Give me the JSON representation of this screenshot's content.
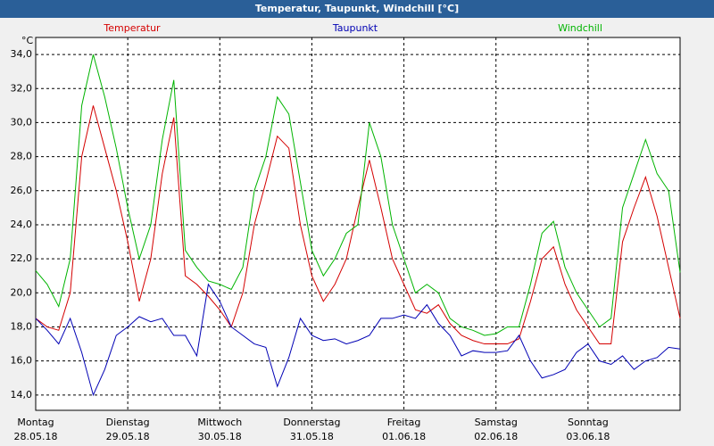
{
  "chart_data": {
    "type": "line",
    "title": "Temperatur, Taupunkt, Windchill [°C]",
    "ylabel": "°C",
    "x": [
      0,
      3,
      6,
      9,
      12,
      15,
      18,
      21,
      24,
      27,
      30,
      33,
      36,
      39,
      42,
      45,
      48,
      51,
      54,
      57,
      60,
      63,
      66,
      69,
      72,
      75,
      78,
      81,
      84,
      87,
      90,
      93,
      96,
      99,
      102,
      105,
      108,
      111,
      114,
      117,
      120,
      123,
      126,
      129,
      132,
      135,
      138,
      141,
      144,
      147,
      150,
      153,
      156,
      159,
      162,
      165,
      168
    ],
    "xlim": [
      0,
      168
    ],
    "xticks": [
      {
        "value": 0,
        "label": "Montag"
      },
      {
        "value": 24,
        "label": "Dienstag"
      },
      {
        "value": 48,
        "label": "Mittwoch"
      },
      {
        "value": 72,
        "label": "Donnerstag"
      },
      {
        "value": 96,
        "label": "Freitag"
      },
      {
        "value": 120,
        "label": "Samstag"
      },
      {
        "value": 144,
        "label": "Sonntag"
      }
    ],
    "xtick_dates": [
      "28.05.18",
      "29.05.18",
      "30.05.18",
      "31.05.18",
      "01.06.18",
      "02.06.18",
      "03.06.18"
    ],
    "ylim": [
      13.1,
      35.0
    ],
    "yticks": [
      {
        "value": 14,
        "label": "14,0"
      },
      {
        "value": 16,
        "label": "16,0"
      },
      {
        "value": 18,
        "label": "18,0"
      },
      {
        "value": 20,
        "label": "20,0"
      },
      {
        "value": 22,
        "label": "22,0"
      },
      {
        "value": 24,
        "label": "24,0"
      },
      {
        "value": 26,
        "label": "26,0"
      },
      {
        "value": 28,
        "label": "28,0"
      },
      {
        "value": 30,
        "label": "30,0"
      },
      {
        "value": 32,
        "label": "32,0"
      },
      {
        "value": 34,
        "label": "34,0"
      }
    ],
    "grid": true,
    "series": [
      {
        "name": "Temperatur",
        "color": "#d40000",
        "values": [
          18.5,
          18.0,
          17.8,
          20,
          28,
          31,
          28.5,
          26,
          23,
          19.5,
          22,
          27,
          30.3,
          21,
          20.5,
          19.8,
          19,
          18,
          20,
          24,
          26.5,
          29.2,
          28.5,
          24,
          21,
          19.5,
          20.5,
          22,
          25,
          27.8,
          25,
          22,
          20.5,
          19,
          18.8,
          19.3,
          18.2,
          17.5,
          17.2,
          17,
          17,
          17,
          17.3,
          19.5,
          22,
          22.7,
          20.5,
          19,
          18,
          17,
          17,
          23,
          25,
          26.8,
          24.5,
          21.5,
          18.5
        ]
      },
      {
        "name": "Taupunkt",
        "color": "#0000b4",
        "values": [
          18.5,
          17.8,
          17,
          18.5,
          16.5,
          14.0,
          15.5,
          17.5,
          18,
          18.6,
          18.3,
          18.5,
          17.5,
          17.5,
          16.3,
          20.5,
          19.5,
          18,
          17.5,
          17,
          16.8,
          14.5,
          16.2,
          18.5,
          17.5,
          17.2,
          17.3,
          17,
          17.2,
          17.5,
          18.5,
          18.5,
          18.7,
          18.5,
          19.3,
          18.2,
          17.5,
          16.3,
          16.6,
          16.5,
          16.5,
          16.6,
          17.5,
          16,
          15,
          15.2,
          15.5,
          16.5,
          17,
          16,
          15.8,
          16.3,
          15.5,
          16,
          16.2,
          16.8,
          16.7
        ]
      },
      {
        "name": "Windchill",
        "color": "#00b400",
        "values": [
          21.3,
          20.5,
          19.2,
          22,
          31,
          34,
          31.5,
          28.5,
          25,
          22,
          24,
          29,
          32.5,
          22.5,
          21.5,
          20.7,
          20.5,
          20.2,
          21.5,
          26,
          28,
          31.5,
          30.5,
          26.5,
          22.5,
          21,
          22,
          23.5,
          24,
          30,
          28,
          24,
          22,
          20,
          20.5,
          20,
          18.5,
          18,
          17.8,
          17.5,
          17.6,
          18,
          18,
          20.5,
          23.5,
          24.2,
          21.5,
          20,
          19,
          18,
          18.5,
          25,
          27,
          29,
          27,
          26,
          21.2
        ]
      }
    ]
  }
}
